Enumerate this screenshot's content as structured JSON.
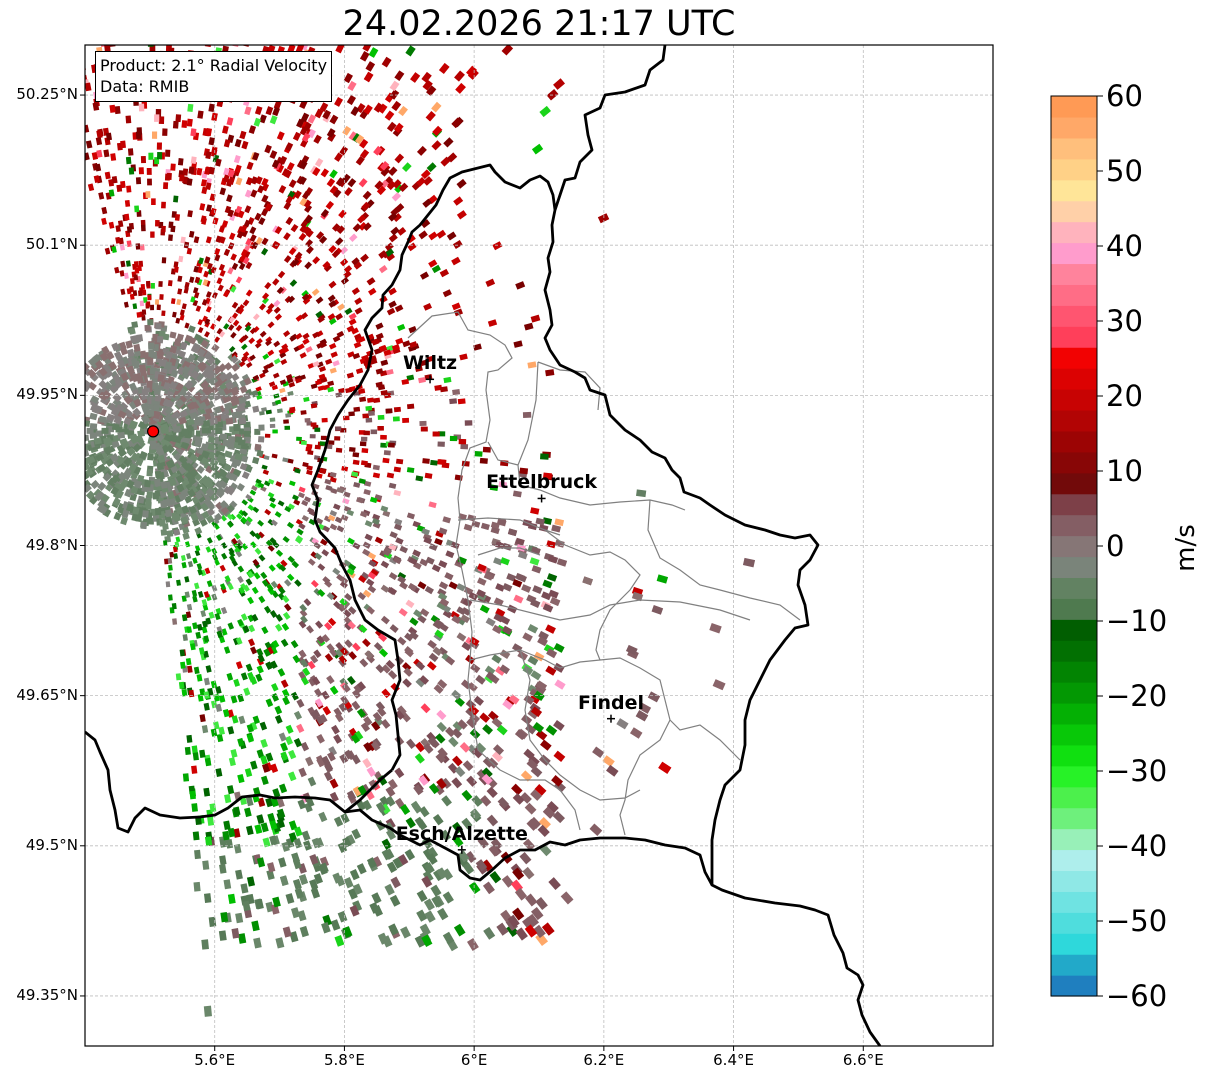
{
  "title": "24.02.2026 21:17 UTC",
  "info": {
    "product": "Product: 2.1° Radial Velocity",
    "data": "Data: RMIB"
  },
  "axes": {
    "lat_ticks": [
      {
        "value": 50.25,
        "label": "50.25°N"
      },
      {
        "value": 50.1,
        "label": "50.1°N"
      },
      {
        "value": 49.95,
        "label": "49.95°N"
      },
      {
        "value": 49.8,
        "label": "49.8°N"
      },
      {
        "value": 49.65,
        "label": "49.65°N"
      },
      {
        "value": 49.5,
        "label": "49.5°N"
      },
      {
        "value": 49.35,
        "label": "49.35°N"
      }
    ],
    "lon_ticks": [
      {
        "value": 5.6,
        "label": "5.6°E"
      },
      {
        "value": 5.8,
        "label": "5.8°E"
      },
      {
        "value": 6.0,
        "label": "6°E"
      },
      {
        "value": 6.2,
        "label": "6.2°E"
      },
      {
        "value": 6.4,
        "label": "6.4°E"
      },
      {
        "value": 6.6,
        "label": "6.6°E"
      }
    ],
    "lon_range": [
      5.4,
      6.8
    ],
    "lat_range": [
      49.3,
      50.3
    ]
  },
  "radar_site": {
    "lon": 5.505,
    "lat": 49.914
  },
  "cities": [
    {
      "name": "Wiltz",
      "lon": 5.932,
      "lat": 49.966
    },
    {
      "name": "Ettelbruck",
      "lon": 6.104,
      "lat": 49.847
    },
    {
      "name": "Findel",
      "lon": 6.211,
      "lat": 49.627
    },
    {
      "name": "Esch/Alzette",
      "lon": 5.981,
      "lat": 49.496
    }
  ],
  "colorbar": {
    "unit": "m/s",
    "ticks": [
      "60",
      "50",
      "40",
      "30",
      "20",
      "10",
      "0",
      "−10",
      "−20",
      "−30",
      "−40",
      "−50",
      "−60"
    ],
    "vmin": -60,
    "vmax": 60,
    "palette": [
      "#1f7fbf",
      "#22a9c9",
      "#2ed8db",
      "#4fdddd",
      "#6fe3e2",
      "#8fe8e6",
      "#aeeeec",
      "#98f0b8",
      "#6ef07c",
      "#4cf04c",
      "#27f227",
      "#10e010",
      "#08c808",
      "#04b004",
      "#039803",
      "#028402",
      "#027002",
      "#015e01",
      "#4f7a4f",
      "#628262",
      "#7a847a",
      "#867676",
      "#845e64",
      "#7d4048",
      "#720a0a",
      "#880606",
      "#9c0404",
      "#b20404",
      "#c80303",
      "#dc0202",
      "#f20202",
      "#ff3f5a",
      "#ff5570",
      "#ff6d86",
      "#ff839c",
      "#ff9ccc",
      "#ffb3bd",
      "#ffd0a8",
      "#ffe598",
      "#ffd187",
      "#ffbf7c",
      "#ffa868",
      "#ff9a55"
    ]
  },
  "colors": {
    "border": "#000000",
    "canton": "#808080",
    "grid": "#bdbdbd",
    "radar_dot": "#ff0000"
  }
}
